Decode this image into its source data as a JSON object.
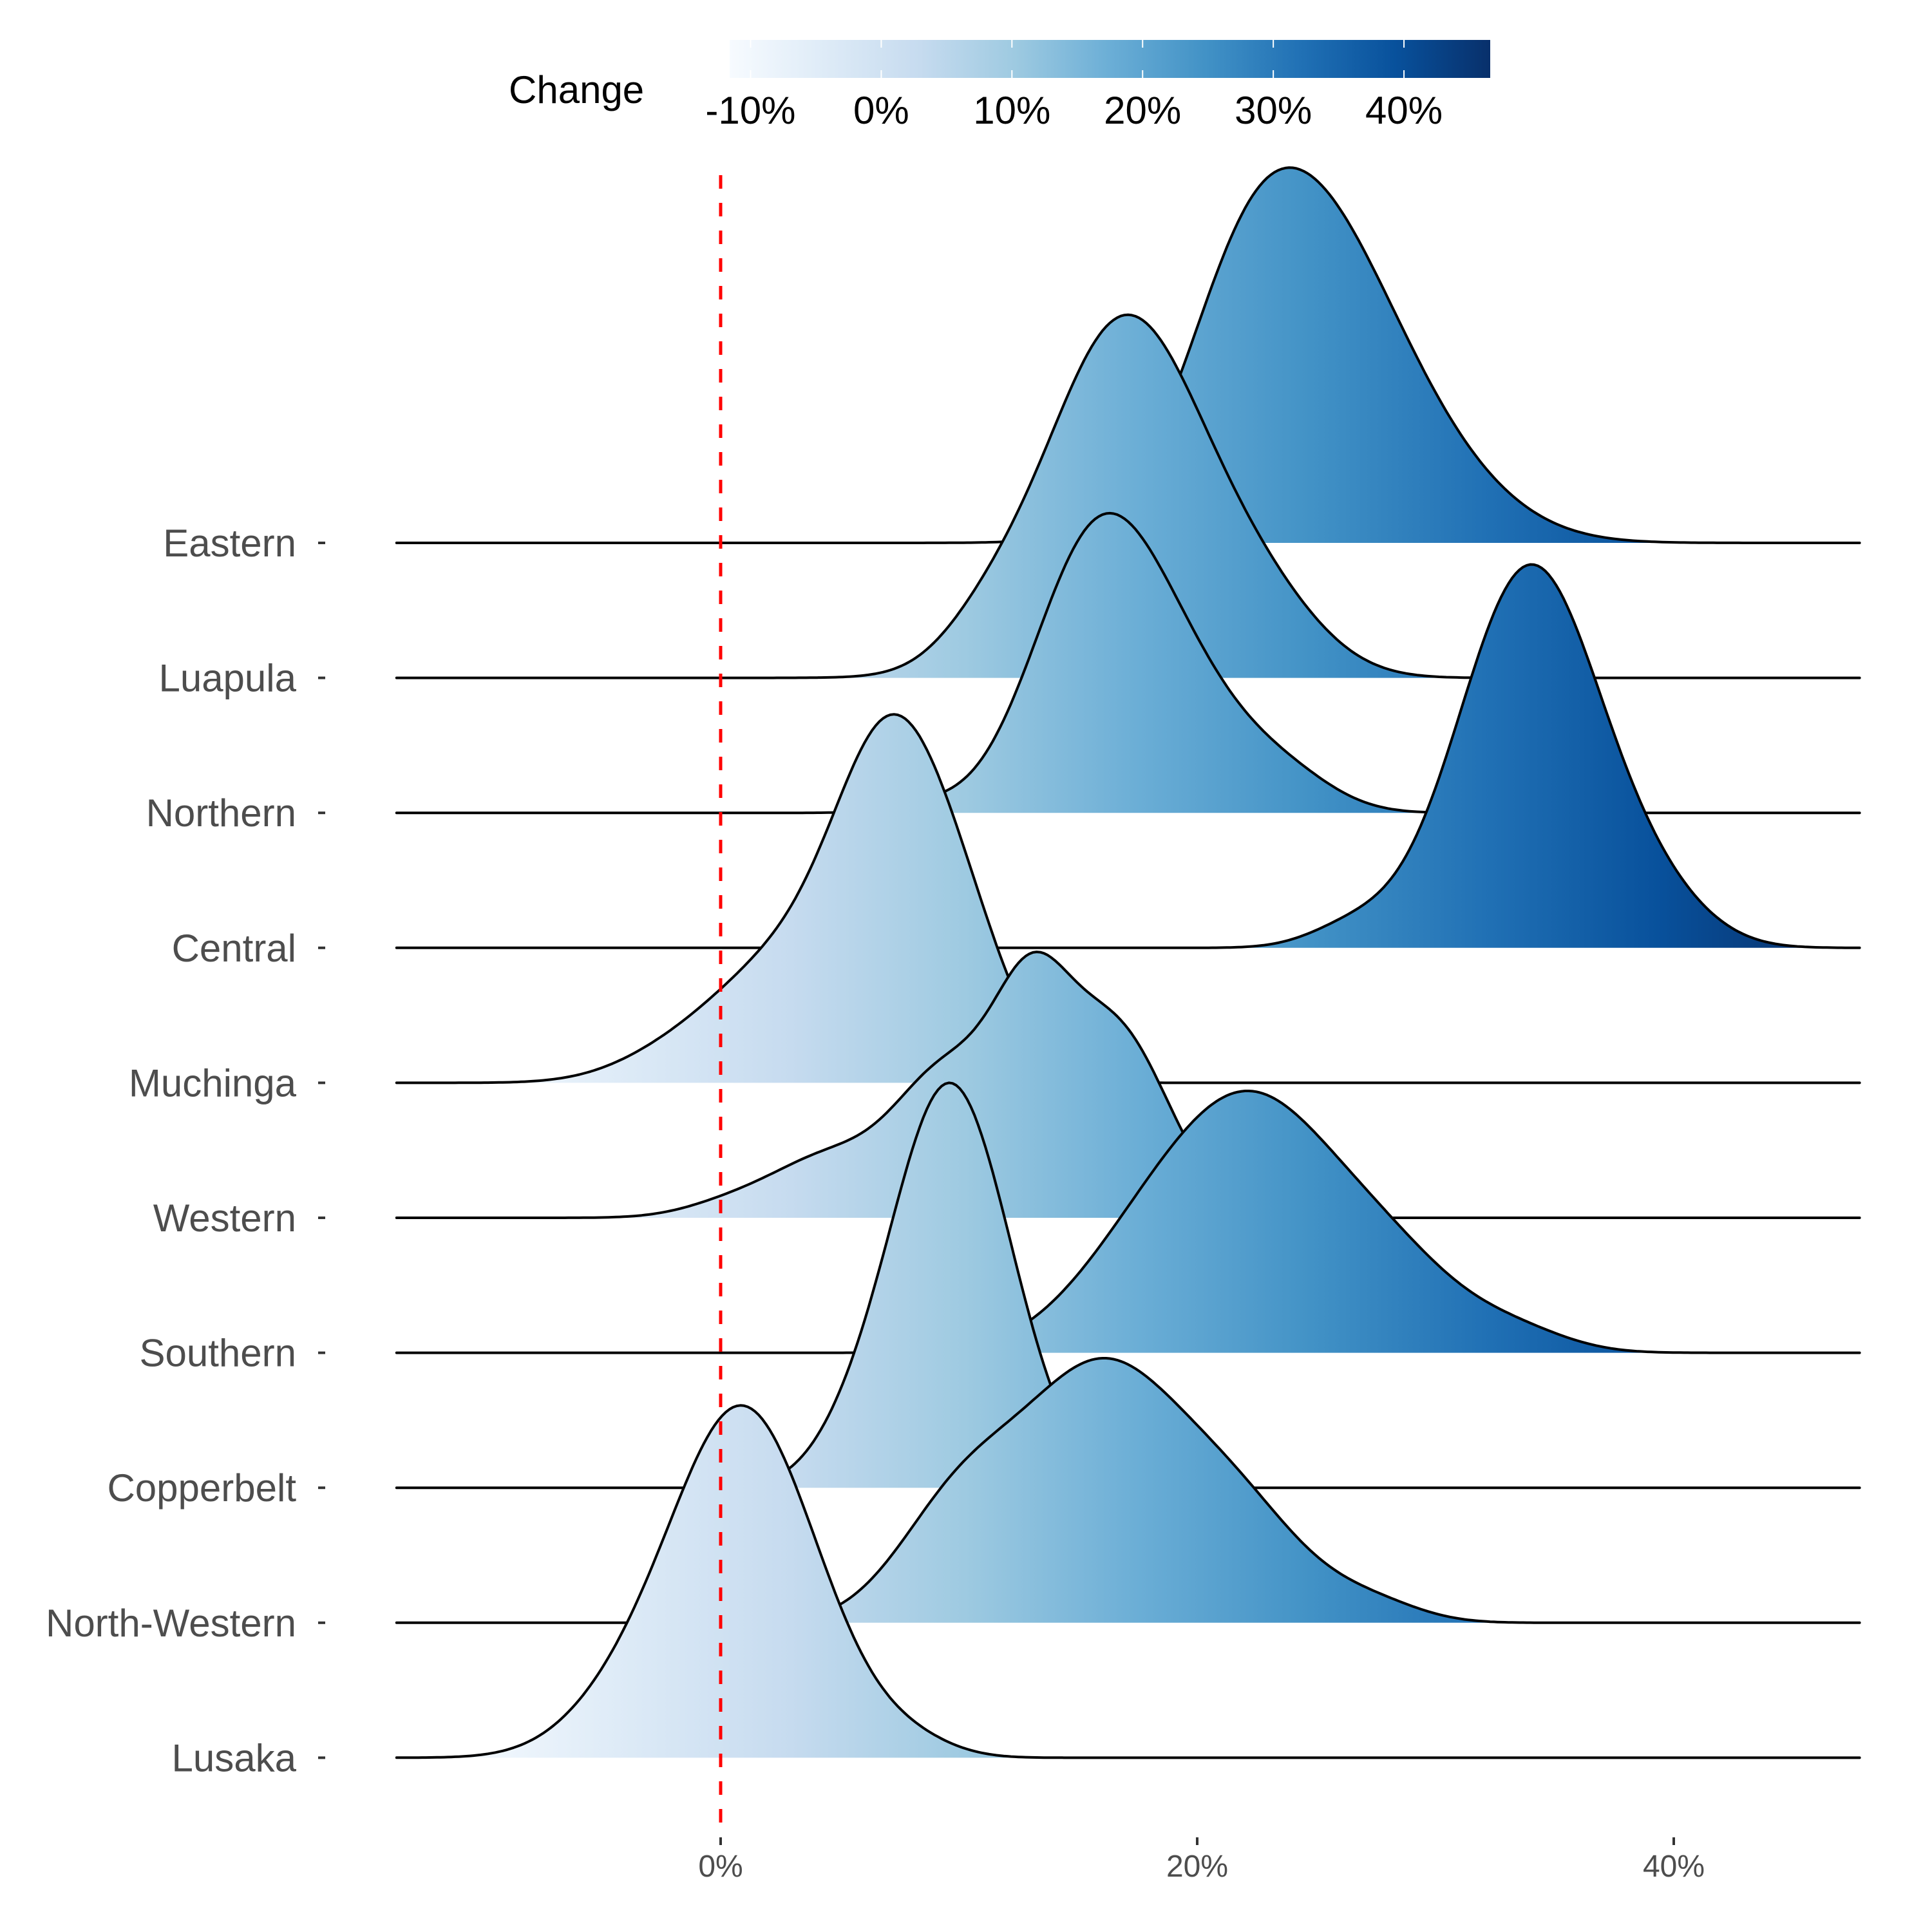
{
  "chart_data": {
    "type": "ridgeline",
    "title": "",
    "xlabel": "",
    "ylabel": "",
    "x_range": [
      -13.6,
      47.8
    ],
    "x_ticks": [
      0,
      20,
      40
    ],
    "x_tick_labels": [
      "0%",
      "20%",
      "40%"
    ],
    "reference_line": {
      "x": 0,
      "style": "dashed",
      "color": "#ff0000"
    },
    "grid": false,
    "legend": {
      "title": "Change",
      "placement": "top",
      "type": "colorbar",
      "range": [
        -11.6,
        46.6
      ],
      "ticks": [
        -10,
        0,
        10,
        20,
        30,
        40
      ],
      "tick_labels": [
        "-10%",
        "0%",
        "10%",
        "20%",
        "30%",
        "40%"
      ],
      "colors": [
        "#f7fbff",
        "#deebf7",
        "#c6dbef",
        "#9ecae1",
        "#6baed6",
        "#4292c6",
        "#2171b5",
        "#08519c",
        "#08306b"
      ]
    },
    "series": [
      {
        "name": "Eastern",
        "peak": 23.9,
        "components": [
          {
            "mean": 24.0,
            "sd": 3.6,
            "w": 0.8
          },
          {
            "mean": 21.5,
            "sd": 2.2,
            "w": 0.12
          },
          {
            "mean": 29.0,
            "sd": 3.5,
            "w": 0.18
          }
        ]
      },
      {
        "name": "Luapula",
        "peak": 16.9,
        "components": [
          {
            "mean": 17.0,
            "sd": 3.4,
            "w": 0.85
          },
          {
            "mean": 11.0,
            "sd": 1.8,
            "w": 0.06
          },
          {
            "mean": 23.0,
            "sd": 2.5,
            "w": 0.12
          }
        ]
      },
      {
        "name": "Northern",
        "peak": 15.7,
        "components": [
          {
            "mean": 15.5,
            "sd": 2.6,
            "w": 0.6
          },
          {
            "mean": 19.0,
            "sd": 3.0,
            "w": 0.35
          },
          {
            "mean": 24.0,
            "sd": 2.0,
            "w": 0.06
          },
          {
            "mean": 8.5,
            "sd": 1.5,
            "w": 0.02
          }
        ]
      },
      {
        "name": "Central",
        "peak": 33.8,
        "components": [
          {
            "mean": 34.0,
            "sd": 3.0,
            "w": 1.0
          },
          {
            "mean": 26.5,
            "sd": 1.8,
            "w": 0.05
          },
          {
            "mean": 39.5,
            "sd": 2.2,
            "w": 0.08
          }
        ]
      },
      {
        "name": "Muchinga",
        "peak": 7.0,
        "components": [
          {
            "mean": 7.2,
            "sd": 2.4,
            "w": 0.65
          },
          {
            "mean": 10.5,
            "sd": 2.0,
            "w": 0.18
          },
          {
            "mean": 2.5,
            "sd": 2.8,
            "w": 0.22
          },
          {
            "mean": -2.0,
            "sd": 2.5,
            "w": 0.05
          }
        ]
      },
      {
        "name": "Western",
        "peak": 13.0,
        "components": [
          {
            "mean": 13.0,
            "sd": 1.6,
            "w": 0.35
          },
          {
            "mean": 16.5,
            "sd": 2.3,
            "w": 0.4
          },
          {
            "mean": 9.5,
            "sd": 2.2,
            "w": 0.3
          },
          {
            "mean": 4.5,
            "sd": 2.3,
            "w": 0.12
          },
          {
            "mean": 0.5,
            "sd": 2.0,
            "w": 0.03
          }
        ]
      },
      {
        "name": "Southern",
        "peak": 22.6,
        "components": [
          {
            "mean": 22.6,
            "sd": 3.2,
            "w": 0.7
          },
          {
            "mean": 18.0,
            "sd": 3.2,
            "w": 0.35
          },
          {
            "mean": 28.0,
            "sd": 3.0,
            "w": 0.3
          },
          {
            "mean": 33.5,
            "sd": 2.2,
            "w": 0.06
          }
        ]
      },
      {
        "name": "Copperbelt",
        "peak": 9.3,
        "components": [
          {
            "mean": 9.2,
            "sd": 2.3,
            "w": 0.8
          },
          {
            "mean": 11.5,
            "sd": 2.2,
            "w": 0.25
          },
          {
            "mean": 5.5,
            "sd": 1.8,
            "w": 0.08
          }
        ]
      },
      {
        "name": "North-Western",
        "peak": 15.3,
        "components": [
          {
            "mean": 15.8,
            "sd": 3.2,
            "w": 0.75
          },
          {
            "mean": 10.0,
            "sd": 2.6,
            "w": 0.35
          },
          {
            "mean": 21.5,
            "sd": 3.0,
            "w": 0.35
          },
          {
            "mean": 27.5,
            "sd": 2.0,
            "w": 0.05
          }
        ]
      },
      {
        "name": "Lusaka",
        "peak": 0.4,
        "components": [
          {
            "mean": 0.5,
            "sd": 2.6,
            "w": 0.8
          },
          {
            "mean": 3.5,
            "sd": 2.5,
            "w": 0.3
          },
          {
            "mean": -3.5,
            "sd": 2.6,
            "w": 0.2
          },
          {
            "mean": 8.0,
            "sd": 1.8,
            "w": 0.04
          }
        ]
      }
    ],
    "peak_heights": {
      "Eastern": 2.78,
      "Luapula": 2.69,
      "Northern": 2.22,
      "Central": 2.84,
      "Muchinga": 2.73,
      "Western": 1.97,
      "Southern": 1.94,
      "Copperbelt": 3.0,
      "North-Western": 1.96,
      "Lusaka": 2.61
    }
  }
}
